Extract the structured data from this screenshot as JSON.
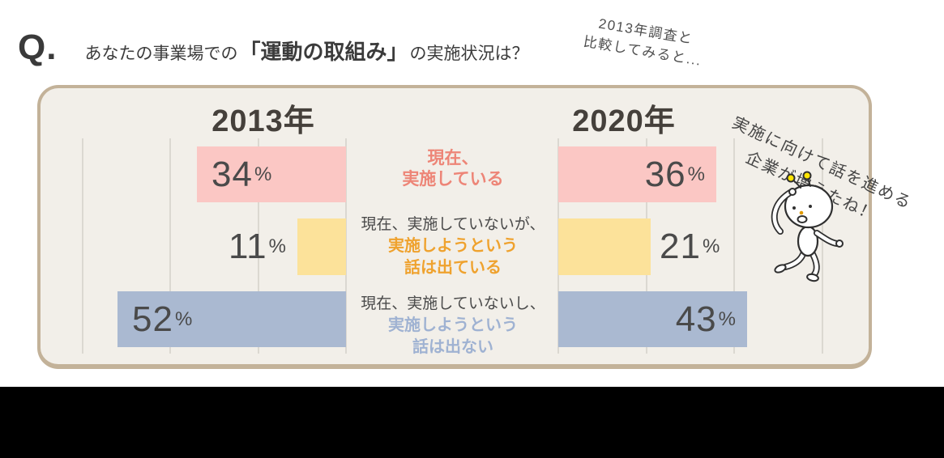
{
  "question": {
    "mark": "Q.",
    "text_before": "あなたの事業場での",
    "text_emphasis": "「運動の取組み」",
    "text_after": "の実施状況は？"
  },
  "note_top_right": {
    "line1": "2013年調査と",
    "line2": "比較してみると..."
  },
  "note_right": {
    "line1": "実施に向けて話を進める",
    "line2": "企業が増えたね！"
  },
  "colors": {
    "panel_bg": "#f2efe9",
    "panel_border": "#c3b299",
    "gridline": "#dbd8d1",
    "bar_pink": "#fbc7c4",
    "bar_yellow": "#fce29a",
    "bar_blue": "#aab9d1",
    "label_pink": "#ed8577",
    "label_orange": "#efa22e",
    "label_blue": "#9fb2d2",
    "text_dark": "#4a4a4a",
    "value_text": "#4a4a4a",
    "antenna_yellow": "#ffe400",
    "bottom_bar": "#000000"
  },
  "chart_data": {
    "type": "bar",
    "orientation": "horizontal",
    "unit": "%",
    "value_axis": {
      "min": 0,
      "max": 60,
      "grid_step": 20,
      "tick_labels_shown": false
    },
    "grid": true,
    "legend_position": "center-column-between-mirrored-charts",
    "groups": [
      {
        "label": "2013年",
        "values": [
          34,
          11,
          52
        ],
        "bars_grow": "right-to-left"
      },
      {
        "label": "2020年",
        "values": [
          36,
          21,
          43
        ],
        "bars_grow": "left-to-right"
      }
    ],
    "categories": [
      {
        "name": "currently-implementing",
        "lines": [
          "現在、",
          "実施している"
        ],
        "plain_line_count": 0
      },
      {
        "name": "not-implementing-but-discussing",
        "lines": [
          "現在、実施していないが、",
          "実施しようという",
          "話は出ている"
        ],
        "plain_line_count": 1
      },
      {
        "name": "not-implementing-no-discussion",
        "lines": [
          "現在、実施していないし、",
          "実施しようという",
          "話は出ない"
        ],
        "plain_line_count": 1
      }
    ]
  }
}
